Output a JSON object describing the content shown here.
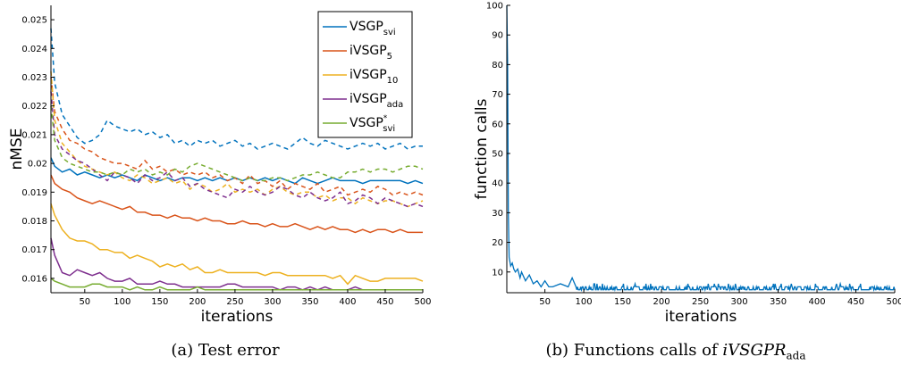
{
  "chart_data": [
    {
      "type": "line",
      "caption": "(a) Test error",
      "xlabel": "iterations",
      "ylabel": "nMSE",
      "xlim": [
        5,
        500
      ],
      "ylim": [
        0.0155,
        0.0255
      ],
      "xticks": [
        50,
        100,
        150,
        200,
        250,
        300,
        350,
        400,
        450,
        500
      ],
      "yticks": [
        0.016,
        0.017,
        0.018,
        0.019,
        0.02,
        0.021,
        0.022,
        0.023,
        0.024,
        0.025
      ],
      "ytick_labels": [
        "0.016",
        "0.017",
        "0.018",
        "0.019",
        "0.02",
        "0.021",
        "0.022",
        "0.023",
        "0.024",
        "0.025"
      ],
      "grid": false,
      "legend_position": "top-right",
      "x": [
        5,
        10,
        20,
        30,
        40,
        50,
        60,
        70,
        80,
        90,
        100,
        110,
        120,
        130,
        140,
        150,
        160,
        170,
        180,
        190,
        200,
        210,
        220,
        230,
        240,
        250,
        260,
        270,
        280,
        290,
        300,
        310,
        320,
        330,
        340,
        350,
        360,
        370,
        380,
        390,
        400,
        410,
        420,
        430,
        440,
        450,
        460,
        470,
        480,
        490,
        500
      ],
      "series": [
        {
          "base": "VSGP",
          "sub": "svi",
          "sup": "",
          "color": "#0072BD",
          "style": "solid",
          "values": [
            0.0202,
            0.0199,
            0.0197,
            0.0198,
            0.0196,
            0.0197,
            0.0196,
            0.0195,
            0.0196,
            0.0195,
            0.0196,
            0.0195,
            0.0194,
            0.0196,
            0.0195,
            0.0194,
            0.0195,
            0.0194,
            0.0195,
            0.0195,
            0.0194,
            0.0195,
            0.0194,
            0.0195,
            0.0194,
            0.0195,
            0.0194,
            0.0195,
            0.0194,
            0.0195,
            0.0194,
            0.0195,
            0.0194,
            0.0193,
            0.0195,
            0.0194,
            0.0193,
            0.0194,
            0.0195,
            0.0194,
            0.0194,
            0.0194,
            0.0193,
            0.0194,
            0.0194,
            0.0194,
            0.0194,
            0.0194,
            0.0193,
            0.0194,
            0.0193
          ]
        },
        {
          "base": "VSGP",
          "sub": "svi",
          "sup": "",
          "color": "#0072BD",
          "style": "dashed",
          "values": [
            0.0247,
            0.0228,
            0.0217,
            0.0213,
            0.0209,
            0.0207,
            0.0208,
            0.021,
            0.0215,
            0.0213,
            0.0212,
            0.0211,
            0.0212,
            0.021,
            0.0211,
            0.0209,
            0.021,
            0.0207,
            0.0208,
            0.0206,
            0.0208,
            0.0207,
            0.0208,
            0.0206,
            0.0207,
            0.0208,
            0.0206,
            0.0207,
            0.0205,
            0.0206,
            0.0207,
            0.0206,
            0.0205,
            0.0207,
            0.0209,
            0.0207,
            0.0206,
            0.0208,
            0.0207,
            0.0206,
            0.0205,
            0.0206,
            0.0207,
            0.0206,
            0.0207,
            0.0205,
            0.0206,
            0.0207,
            0.0205,
            0.0206,
            0.0206
          ]
        },
        {
          "base": "iVSGP",
          "sub": "5",
          "sup": "",
          "color": "#D95319",
          "style": "solid",
          "values": [
            0.0196,
            0.0193,
            0.0191,
            0.019,
            0.0188,
            0.0187,
            0.0186,
            0.0187,
            0.0186,
            0.0185,
            0.0184,
            0.0185,
            0.0183,
            0.0183,
            0.0182,
            0.0182,
            0.0181,
            0.0182,
            0.0181,
            0.0181,
            0.018,
            0.0181,
            0.018,
            0.018,
            0.0179,
            0.0179,
            0.018,
            0.0179,
            0.0179,
            0.0178,
            0.0179,
            0.0178,
            0.0178,
            0.0179,
            0.0178,
            0.0177,
            0.0178,
            0.0177,
            0.0178,
            0.0177,
            0.0177,
            0.0176,
            0.0177,
            0.0176,
            0.0177,
            0.0177,
            0.0176,
            0.0177,
            0.0176,
            0.0176,
            0.0176
          ]
        },
        {
          "base": "iVSGP",
          "sub": "5",
          "sup": "",
          "color": "#D95319",
          "style": "dashed",
          "values": [
            0.023,
            0.0218,
            0.0212,
            0.0208,
            0.0207,
            0.0205,
            0.0204,
            0.0202,
            0.0201,
            0.02,
            0.02,
            0.0199,
            0.0198,
            0.0201,
            0.0198,
            0.0199,
            0.0197,
            0.0198,
            0.0196,
            0.0197,
            0.0196,
            0.0197,
            0.0195,
            0.0196,
            0.0194,
            0.0195,
            0.0193,
            0.0196,
            0.0193,
            0.0194,
            0.0192,
            0.0194,
            0.0191,
            0.0193,
            0.0192,
            0.0191,
            0.0193,
            0.019,
            0.0191,
            0.0192,
            0.0189,
            0.019,
            0.0191,
            0.019,
            0.0192,
            0.0191,
            0.0189,
            0.019,
            0.0189,
            0.019,
            0.0189
          ]
        },
        {
          "base": "iVSGP",
          "sub": "10",
          "sup": "",
          "color": "#EDB120",
          "style": "solid",
          "values": [
            0.0186,
            0.0182,
            0.0177,
            0.0174,
            0.0173,
            0.0173,
            0.0172,
            0.017,
            0.017,
            0.0169,
            0.0169,
            0.0167,
            0.0168,
            0.0167,
            0.0166,
            0.0164,
            0.0165,
            0.0164,
            0.0165,
            0.0163,
            0.0164,
            0.0162,
            0.0162,
            0.0163,
            0.0162,
            0.0162,
            0.0162,
            0.0162,
            0.0162,
            0.0161,
            0.0162,
            0.0162,
            0.0161,
            0.0161,
            0.0161,
            0.0161,
            0.0161,
            0.0161,
            0.016,
            0.0161,
            0.0158,
            0.0161,
            0.016,
            0.0159,
            0.0159,
            0.016,
            0.016,
            0.016,
            0.016,
            0.016,
            0.0159
          ]
        },
        {
          "base": "iVSGP",
          "sub": "10",
          "sup": "",
          "color": "#EDB120",
          "style": "dashed",
          "values": [
            0.0232,
            0.0215,
            0.0207,
            0.0204,
            0.0201,
            0.0199,
            0.0198,
            0.0197,
            0.0196,
            0.0197,
            0.0195,
            0.0194,
            0.0196,
            0.0195,
            0.0193,
            0.0194,
            0.0195,
            0.0193,
            0.0194,
            0.0191,
            0.0193,
            0.0192,
            0.019,
            0.0191,
            0.0193,
            0.019,
            0.0191,
            0.019,
            0.0191,
            0.0189,
            0.0191,
            0.0192,
            0.019,
            0.0189,
            0.019,
            0.019,
            0.0188,
            0.0189,
            0.0187,
            0.0188,
            0.0188,
            0.0186,
            0.0188,
            0.0187,
            0.0186,
            0.0187,
            0.0187,
            0.0186,
            0.0185,
            0.0186,
            0.0187
          ]
        },
        {
          "base": "iVSGP",
          "sub": "ada",
          "sup": "",
          "color": "#7E2F8E",
          "style": "solid",
          "values": [
            0.0174,
            0.0168,
            0.0162,
            0.0161,
            0.0163,
            0.0162,
            0.0161,
            0.0162,
            0.016,
            0.0159,
            0.0159,
            0.016,
            0.0158,
            0.0158,
            0.0158,
            0.0159,
            0.0158,
            0.0158,
            0.0157,
            0.0157,
            0.0157,
            0.0157,
            0.0157,
            0.0157,
            0.0158,
            0.0158,
            0.0157,
            0.0157,
            0.0157,
            0.0157,
            0.0157,
            0.0156,
            0.0157,
            0.0157,
            0.0156,
            0.0157,
            0.0156,
            0.0157,
            0.0156,
            0.0156,
            0.0156,
            0.0157,
            0.0156,
            0.0156,
            0.0156,
            0.0156,
            0.0156,
            0.0156,
            0.0156,
            0.0156,
            0.0156
          ]
        },
        {
          "base": "iVSGP",
          "sub": "ada",
          "sup": "",
          "color": "#7E2F8E",
          "style": "dashed",
          "values": [
            0.0225,
            0.021,
            0.0205,
            0.0203,
            0.0201,
            0.02,
            0.0198,
            0.0196,
            0.0194,
            0.0197,
            0.0196,
            0.0195,
            0.0193,
            0.0196,
            0.0194,
            0.0195,
            0.0197,
            0.0194,
            0.0195,
            0.0192,
            0.0193,
            0.0191,
            0.019,
            0.0189,
            0.0188,
            0.0191,
            0.019,
            0.0192,
            0.019,
            0.0189,
            0.019,
            0.0192,
            0.0191,
            0.0189,
            0.0188,
            0.019,
            0.0188,
            0.0187,
            0.0188,
            0.019,
            0.0186,
            0.0187,
            0.0189,
            0.0188,
            0.0186,
            0.0188,
            0.0187,
            0.0186,
            0.0185,
            0.0186,
            0.0185
          ]
        },
        {
          "base": "VSGP",
          "sub": "svi",
          "sup": "*",
          "color": "#77AC30",
          "style": "solid",
          "values": [
            0.016,
            0.0159,
            0.0158,
            0.0157,
            0.0157,
            0.0157,
            0.0158,
            0.0158,
            0.0157,
            0.0157,
            0.0157,
            0.0156,
            0.0157,
            0.0156,
            0.0156,
            0.0157,
            0.0156,
            0.0156,
            0.0156,
            0.0156,
            0.0157,
            0.0156,
            0.0156,
            0.0156,
            0.0156,
            0.0156,
            0.0156,
            0.0156,
            0.0156,
            0.0156,
            0.0156,
            0.0156,
            0.0156,
            0.0156,
            0.0156,
            0.0156,
            0.0156,
            0.0156,
            0.0156,
            0.0156,
            0.0156,
            0.0156,
            0.0156,
            0.0156,
            0.0156,
            0.0156,
            0.0156,
            0.0156,
            0.0156,
            0.0156,
            0.0156
          ]
        },
        {
          "base": "VSGP",
          "sub": "svi",
          "sup": "*",
          "color": "#77AC30",
          "style": "dashed",
          "values": [
            0.022,
            0.0208,
            0.0202,
            0.02,
            0.0199,
            0.0198,
            0.0197,
            0.0197,
            0.0196,
            0.0197,
            0.0196,
            0.0198,
            0.0197,
            0.0198,
            0.0196,
            0.0197,
            0.0196,
            0.0198,
            0.0197,
            0.0199,
            0.02,
            0.0199,
            0.0198,
            0.0197,
            0.0196,
            0.0195,
            0.0194,
            0.0195,
            0.0194,
            0.0194,
            0.0195,
            0.0195,
            0.0194,
            0.0195,
            0.0196,
            0.0196,
            0.0197,
            0.0196,
            0.0195,
            0.0195,
            0.0197,
            0.0197,
            0.0198,
            0.0197,
            0.0198,
            0.0198,
            0.0197,
            0.0198,
            0.0199,
            0.0199,
            0.0198
          ]
        }
      ],
      "legend": [
        {
          "base": "VSGP",
          "sub": "svi",
          "sup": "",
          "color": "#0072BD"
        },
        {
          "base": "iVSGP",
          "sub": "5",
          "sup": "",
          "color": "#D95319"
        },
        {
          "base": "iVSGP",
          "sub": "10",
          "sup": "",
          "color": "#EDB120"
        },
        {
          "base": "iVSGP",
          "sub": "ada",
          "sup": "",
          "color": "#7E2F8E"
        },
        {
          "base": "VSGP",
          "sub": "svi",
          "sup": "*",
          "color": "#77AC30"
        }
      ]
    },
    {
      "type": "line",
      "caption_main": "(b) Functions calls of ",
      "caption_italic": "iVSGPR",
      "caption_sub": "ada",
      "xlabel": "iterations",
      "ylabel": "function calls",
      "xlim": [
        1,
        500
      ],
      "ylim": [
        3,
        100
      ],
      "xticks": [
        50,
        100,
        150,
        200,
        250,
        300,
        350,
        400,
        450,
        500
      ],
      "yticks": [
        10,
        20,
        30,
        40,
        50,
        60,
        70,
        80,
        90,
        100
      ],
      "grid": false,
      "color": "#0072BD",
      "key_points": [
        [
          1,
          100
        ],
        [
          2,
          80
        ],
        [
          3,
          30
        ],
        [
          4,
          15
        ],
        [
          6,
          12
        ],
        [
          8,
          13
        ],
        [
          10,
          11
        ],
        [
          12,
          10
        ],
        [
          15,
          11
        ],
        [
          18,
          8
        ],
        [
          20,
          10
        ],
        [
          25,
          7
        ],
        [
          30,
          9
        ],
        [
          35,
          6
        ],
        [
          40,
          7
        ],
        [
          45,
          5
        ],
        [
          50,
          7
        ],
        [
          55,
          5
        ],
        [
          60,
          5
        ],
        [
          70,
          6
        ],
        [
          80,
          5
        ],
        [
          85,
          8
        ],
        [
          90,
          5
        ],
        [
          500,
          5
        ]
      ],
      "steady_value": 4.5,
      "steady_jitter": 0.5
    }
  ]
}
